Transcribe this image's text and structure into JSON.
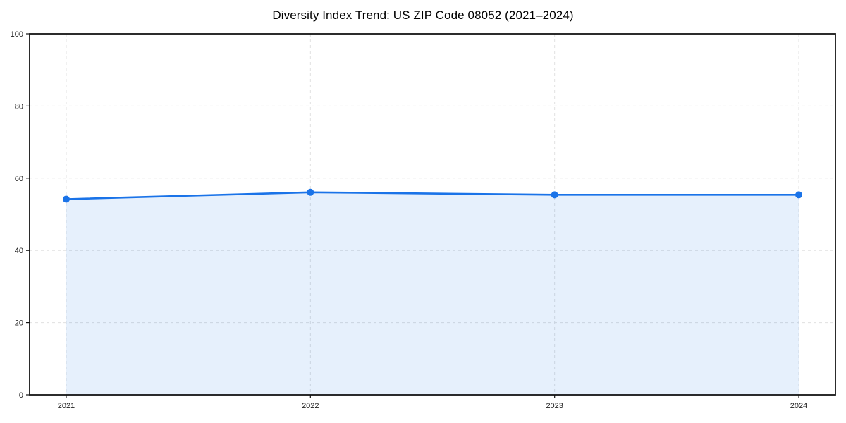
{
  "title": "Diversity Index Trend: US ZIP Code 08052 (2021–2024)",
  "chart_data": {
    "type": "area",
    "title": "Diversity Index Trend: US ZIP Code 08052 (2021–2024)",
    "categories": [
      "2021",
      "2022",
      "2023",
      "2024"
    ],
    "x": [
      2021,
      2022,
      2023,
      2024
    ],
    "series": [
      {
        "name": "Diversity Index",
        "values": [
          54.2,
          56.1,
          55.4,
          55.4
        ]
      }
    ],
    "xlabel": "",
    "ylabel": "",
    "xlim": [
      2020.85,
      2024.15
    ],
    "ylim": [
      0,
      100
    ],
    "yticks": [
      0,
      20,
      40,
      60,
      80,
      100
    ],
    "xticks": [
      2021,
      2022,
      2023,
      2024
    ],
    "grid": true,
    "grid_style": "dashed",
    "legend_position": "none",
    "line_color": "#1a73e8",
    "marker_color": "#1a73e8",
    "fill_color": "#1a73e8",
    "fill_opacity": 0.11,
    "grid_color": "#e0e0e0",
    "axis_color": "#141414",
    "tick_label_color": "#222222",
    "title_color": "#000000",
    "background_color": "#ffffff"
  }
}
